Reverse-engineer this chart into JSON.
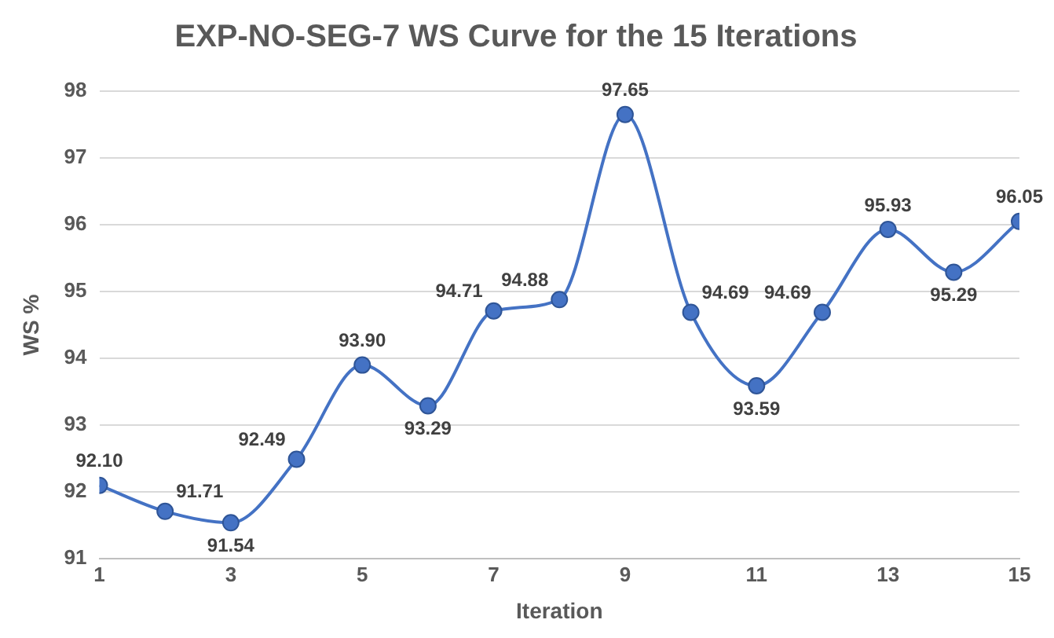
{
  "chart_data": {
    "type": "line",
    "title": "EXP-NO-SEG-7 WS Curve for the 15 Iterations",
    "xlabel": "Iteration",
    "ylabel": "WS %",
    "x": [
      1,
      2,
      3,
      4,
      5,
      6,
      7,
      8,
      9,
      10,
      11,
      12,
      13,
      14,
      15
    ],
    "series": [
      {
        "color": "#4472c4",
        "values": [
          92.1,
          91.71,
          91.54,
          92.49,
          93.9,
          93.29,
          94.71,
          94.88,
          97.65,
          94.69,
          93.59,
          94.69,
          95.93,
          95.29,
          96.05
        ],
        "value_labels": [
          "92.10",
          "91.71",
          "91.54",
          "92.49",
          "93.90",
          "93.29",
          "94.71",
          "94.88",
          "97.65",
          "94.69",
          "93.59",
          "94.69",
          "95.93",
          "95.29",
          "96.05"
        ]
      }
    ],
    "xlim": [
      1,
      15
    ],
    "xticks": [
      1,
      3,
      5,
      7,
      9,
      11,
      13,
      15
    ],
    "ylim": [
      91,
      98
    ],
    "yticks": [
      91,
      92,
      93,
      94,
      95,
      96,
      97,
      98
    ],
    "grid": "y",
    "legend": false,
    "marker": "circle",
    "line_style": "solid"
  }
}
